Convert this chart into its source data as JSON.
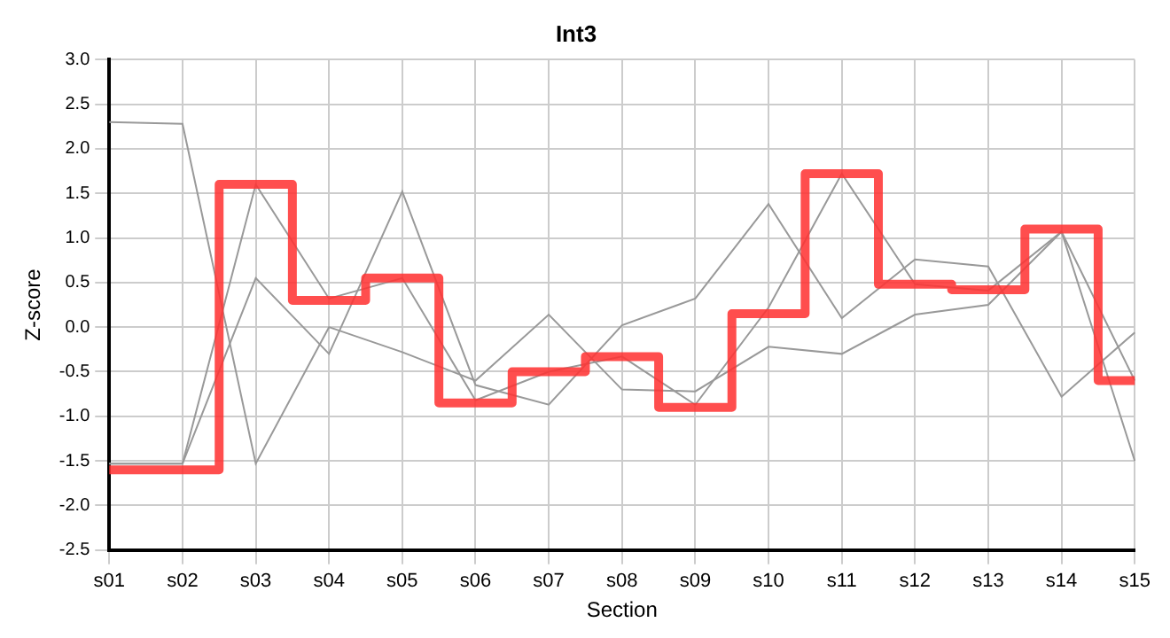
{
  "chart_data": {
    "type": "line",
    "title": "Int3",
    "xlabel": "Section",
    "ylabel": "Z-score",
    "categories": [
      "s01",
      "s02",
      "s03",
      "s04",
      "s05",
      "s06",
      "s07",
      "s08",
      "s09",
      "s10",
      "s11",
      "s12",
      "s13",
      "s14",
      "s15"
    ],
    "series": [
      {
        "type": "line",
        "color": "#999999",
        "values": [
          2.3,
          2.28,
          -1.53,
          0.0,
          -0.28,
          -0.6,
          0.14,
          -0.7,
          -0.72,
          -0.22,
          -0.3,
          0.14,
          0.25,
          1.07,
          -0.6
        ]
      },
      {
        "type": "line",
        "color": "#999999",
        "values": [
          -1.53,
          -1.53,
          1.6,
          0.32,
          0.55,
          -0.82,
          -0.5,
          -0.33,
          -0.87,
          0.22,
          1.72,
          0.48,
          0.41,
          1.07,
          -1.5
        ]
      },
      {
        "type": "line",
        "color": "#999999",
        "values": [
          -1.53,
          -1.53,
          0.55,
          -0.3,
          1.52,
          -0.65,
          -0.87,
          0.02,
          0.32,
          1.38,
          0.1,
          0.76,
          0.68,
          -0.78,
          -0.06
        ]
      },
      {
        "type": "step",
        "color": "#ff3333",
        "values": [
          -1.6,
          -1.6,
          1.6,
          0.3,
          0.55,
          -0.85,
          -0.5,
          -0.33,
          -0.9,
          0.15,
          1.72,
          0.48,
          0.42,
          1.1,
          -0.6
        ]
      }
    ],
    "ylim": [
      -2.5,
      3.0
    ],
    "yticks": [
      {
        "value": -2.5,
        "label": "-2.5"
      },
      {
        "value": -2.0,
        "label": "-2.0"
      },
      {
        "value": -1.5,
        "label": "-1.5"
      },
      {
        "value": -1.0,
        "label": "-1.0"
      },
      {
        "value": -0.5,
        "label": "-0.5"
      },
      {
        "value": 0,
        "label": "0.0"
      },
      {
        "value": 0.5,
        "label": "0.5"
      },
      {
        "value": 1.0,
        "label": "1.0"
      },
      {
        "value": 1.5,
        "label": "1.5"
      },
      {
        "value": 2.0,
        "label": "2.0"
      },
      {
        "value": 2.5,
        "label": "2.5"
      },
      {
        "value": 3.0,
        "label": "3.0"
      }
    ],
    "grid": true,
    "legend": false
  }
}
